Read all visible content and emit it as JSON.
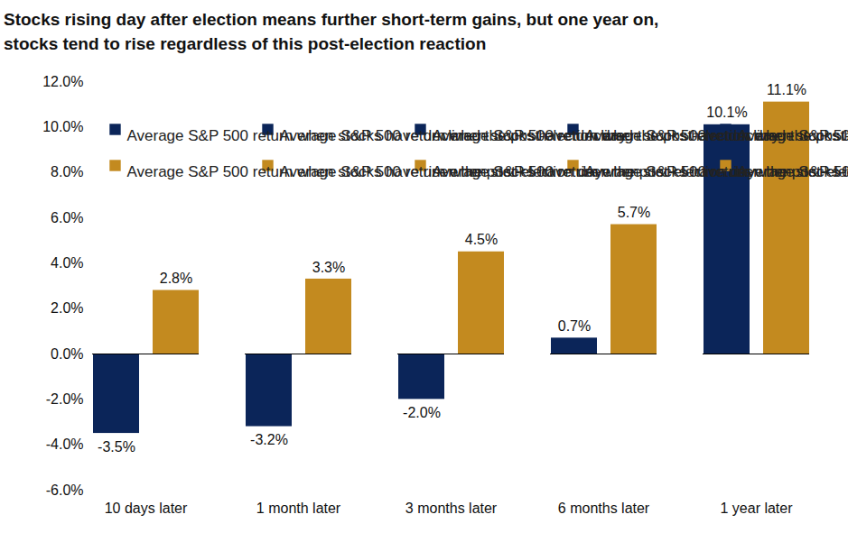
{
  "chart_data": {
    "type": "bar",
    "title": "Stocks rising day after election means further short-term gains, but one year on, stocks tend to rise regardless of this post-election reaction",
    "categories": [
      "10 days later",
      "1 month later",
      "3 months later",
      "6 months later",
      "1 year later"
    ],
    "series": [
      {
        "name": "Average S&P 500 return when stocks have declined the post-election day",
        "color": "#0b2559",
        "values": [
          -3.5,
          -3.2,
          -2.0,
          0.7,
          10.1
        ],
        "value_labels": [
          "-3.5%",
          "-3.2%",
          "-2.0%",
          "0.7%",
          "10.1%"
        ]
      },
      {
        "name": "Average S&P 500 return when stocks have risen the post-election day",
        "color": "#c38a1f",
        "values": [
          2.8,
          3.3,
          4.5,
          5.7,
          11.1
        ],
        "value_labels": [
          "2.8%",
          "3.3%",
          "4.5%",
          "5.7%",
          "11.1%"
        ]
      }
    ],
    "ylim": [
      -6,
      12
    ],
    "yticks": [
      {
        "value": -6,
        "label": "-6.0%"
      },
      {
        "value": -4,
        "label": "-4.0%"
      },
      {
        "value": -2,
        "label": "-2.0%"
      },
      {
        "value": 0,
        "label": "0.0%"
      },
      {
        "value": 2,
        "label": "2.0%"
      },
      {
        "value": 4,
        "label": "4.0%"
      },
      {
        "value": 6,
        "label": "6.0%"
      },
      {
        "value": 8,
        "label": "8.0%"
      },
      {
        "value": 10,
        "label": "10.0%"
      },
      {
        "value": 12,
        "label": "12.0%"
      }
    ],
    "grid": false,
    "legend": "top-left",
    "data_labels": true
  }
}
